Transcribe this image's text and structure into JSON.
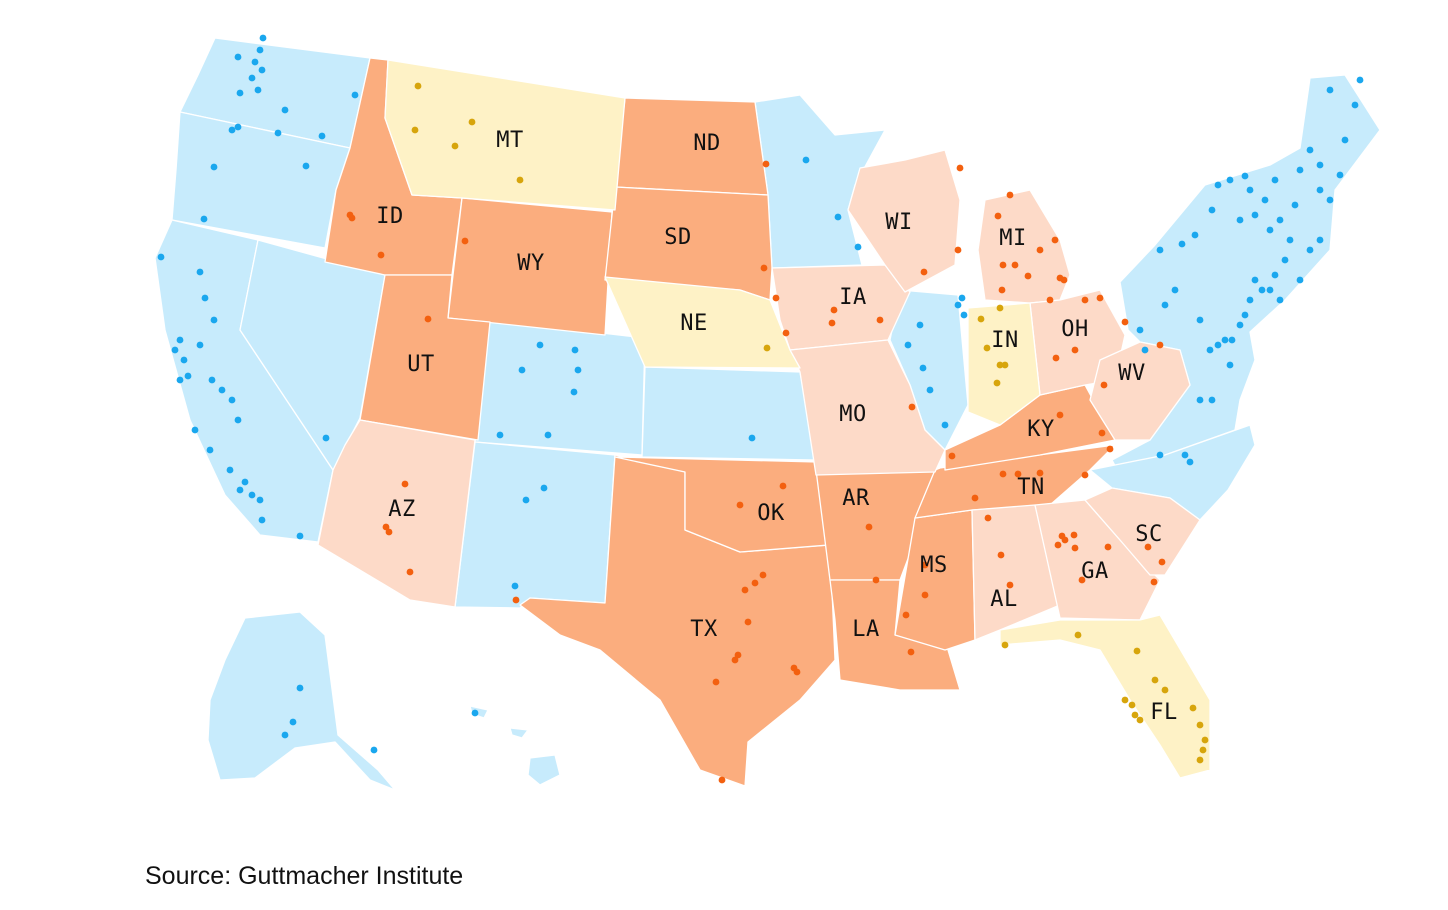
{
  "colors": {
    "blue": "#c7ebfc",
    "orange": "#fbad7e",
    "peach": "#fddac8",
    "yellow": "#fef2c6",
    "dot_blue": "#1aa7ee",
    "dot_orange": "#f3600f",
    "dot_yellow": "#d7a50c"
  },
  "labels": {
    "MT": "MT",
    "ND": "ND",
    "SD": "SD",
    "ID": "ID",
    "WY": "WY",
    "NE": "NE",
    "UT": "UT",
    "AZ": "AZ",
    "TX": "TX",
    "OK": "OK",
    "AR": "AR",
    "LA": "LA",
    "MS": "MS",
    "AL": "AL",
    "GA": "GA",
    "SC": "SC",
    "FL": "FL",
    "TN": "TN",
    "KY": "KY",
    "WV": "WV",
    "OH": "OH",
    "IN": "IN",
    "MI": "MI",
    "WI": "WI",
    "IA": "IA",
    "MO": "MO"
  },
  "source": "Source: Guttmacher Institute"
}
